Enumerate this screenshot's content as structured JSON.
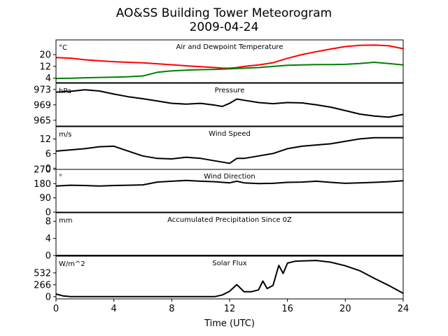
{
  "chart_data": {
    "type": "line",
    "title": "AO&SS Building Tower Meteorogram",
    "subtitle": "2009-04-24",
    "xlabel": "Time (UTC)",
    "xlim": [
      0,
      24
    ],
    "x_ticks": [
      0,
      4,
      8,
      12,
      16,
      20,
      24
    ],
    "x_tick_labels": [
      "0",
      "4",
      "8",
      "12",
      "16",
      "20",
      "24"
    ],
    "panels": [
      {
        "id": "temp",
        "title": "Air and Dewpoint Temperature",
        "unit": "°C",
        "ylim": [
          1,
          30
        ],
        "yticks": [
          4,
          12,
          20
        ],
        "ytick_labels": [
          "4",
          "12",
          "20"
        ],
        "series": [
          {
            "color": "#ff0000",
            "x": [
              0,
              1,
              2,
              3,
              4,
              5,
              6,
              7,
              8,
              9,
              10,
              11,
              11.5,
              12,
              12.5,
              13,
              14,
              15,
              16,
              17,
              18,
              19,
              20,
              21,
              22,
              23,
              24
            ],
            "y": [
              18,
              17.6,
              16.5,
              15.8,
              15.2,
              14.8,
              14.4,
              13.8,
              13.1,
              12.4,
              11.8,
              11.2,
              10.9,
              10.8,
              11.2,
              12,
              13,
              14.5,
              17.5,
              20,
              22,
              23.8,
              25.5,
              26.3,
              26.5,
              26,
              24
            ]
          },
          {
            "color": "#008000",
            "x": [
              0,
              1,
              2,
              3,
              4,
              5,
              6,
              7,
              8,
              9,
              10,
              11,
              12,
              13,
              14,
              15,
              16,
              17,
              18,
              19,
              20,
              21,
              22,
              23,
              24
            ],
            "y": [
              3.8,
              4.0,
              4.3,
              4.5,
              4.7,
              5.0,
              5.5,
              8.0,
              9.0,
              9.4,
              9.8,
              10.0,
              10.3,
              10.8,
              11.2,
              12.0,
              12.8,
              13.0,
              13.2,
              13.2,
              13.4,
              14.0,
              14.8,
              14.0,
              13.0
            ]
          }
        ]
      },
      {
        "id": "pressure",
        "title": "Pressure",
        "unit": "hPa",
        "ylim": [
          963.5,
          974.6
        ],
        "yticks": [
          965,
          969,
          973
        ],
        "ytick_labels": [
          "965",
          "969",
          "973"
        ],
        "series": [
          {
            "color": "#000000",
            "x": [
              0,
              1,
              2,
              3,
              4,
              5,
              6,
              7,
              8,
              9,
              10,
              11,
              11.5,
              12,
              12.5,
              13,
              14,
              15,
              16,
              17,
              18,
              19,
              20,
              21,
              22,
              23,
              24
            ],
            "y": [
              972.3,
              972.5,
              972.9,
              972.6,
              971.8,
              971.1,
              970.6,
              970.0,
              969.4,
              969.2,
              969.4,
              968.9,
              968.6,
              969.4,
              970.5,
              970.2,
              969.6,
              969.3,
              969.6,
              969.5,
              969.0,
              968.4,
              967.5,
              966.6,
              966.1,
              965.8,
              966.5
            ]
          }
        ]
      },
      {
        "id": "wind_speed",
        "title": "Wind Speed",
        "unit": "m/s",
        "ylim": [
          -0.5,
          17
        ],
        "yticks": [
          0,
          6,
          12
        ],
        "ytick_labels": [
          "0",
          "6",
          "12"
        ],
        "series": [
          {
            "color": "#000000",
            "x": [
              0,
              1,
              2,
              3,
              4,
              5,
              6,
              7,
              8,
              9,
              10,
              11,
              12,
              12.5,
              13,
              14,
              15,
              16,
              17,
              18,
              19,
              20,
              21,
              22,
              23,
              24
            ],
            "y": [
              7,
              7.5,
              8,
              8.8,
              9,
              7,
              5,
              4,
              3.8,
              4.5,
              4,
              3,
              2,
              4,
              4,
              5,
              6,
              8,
              9,
              9.5,
              10,
              11,
              12,
              12.5,
              12.5,
              12.5
            ]
          }
        ]
      },
      {
        "id": "wind_dir",
        "title": "Wind Direction",
        "unit": "°",
        "ylim": [
          0,
          270
        ],
        "yticks": [
          0,
          90,
          180,
          270
        ],
        "ytick_labels": [
          "0",
          "90",
          "180",
          "270"
        ],
        "series": [
          {
            "color": "#000000",
            "x": [
              0,
              1,
              2,
              3,
              4,
              5,
              6,
              7,
              8,
              9,
              10,
              11,
              12,
              12.5,
              13,
              14,
              15,
              16,
              17,
              18,
              19,
              20,
              21,
              22,
              23,
              24
            ],
            "y": [
              165,
              170,
              168,
              165,
              168,
              170,
              172,
              190,
              195,
              200,
              195,
              192,
              185,
              195,
              185,
              180,
              182,
              188,
              190,
              195,
              188,
              182,
              185,
              188,
              192,
              198
            ]
          }
        ]
      },
      {
        "id": "precip",
        "title": "Accumulated Precipitation Since 0Z",
        "unit": "mm",
        "ylim": [
          0,
          10
        ],
        "yticks": [
          0,
          4,
          8
        ],
        "ytick_labels": [
          "0",
          "4",
          "8"
        ],
        "series": [
          {
            "color": "#000000",
            "x": [
              0,
              24
            ],
            "y": [
              0,
              0
            ]
          }
        ]
      },
      {
        "id": "solar",
        "title": "Solar Flux",
        "unit": "W/m^2",
        "ylim": [
          -50,
          905
        ],
        "yticks": [
          0,
          266,
          532
        ],
        "ytick_labels": [
          "0",
          "266",
          "532"
        ],
        "series": [
          {
            "color": "#000000",
            "x": [
              0,
              0.5,
              1,
              2,
              4,
              6,
              8,
              10,
              11,
              11.5,
              12,
              12.5,
              13,
              13.5,
              14,
              14.3,
              14.6,
              15,
              15.4,
              15.7,
              16,
              16.5,
              17,
              18,
              19,
              20,
              21,
              22,
              23,
              24
            ],
            "y": [
              60,
              15,
              0,
              0,
              0,
              0,
              0,
              0,
              2,
              40,
              120,
              270,
              110,
              110,
              150,
              350,
              180,
              250,
              700,
              520,
              750,
              790,
              800,
              810,
              770,
              690,
              580,
              410,
              250,
              75
            ]
          }
        ]
      }
    ]
  }
}
